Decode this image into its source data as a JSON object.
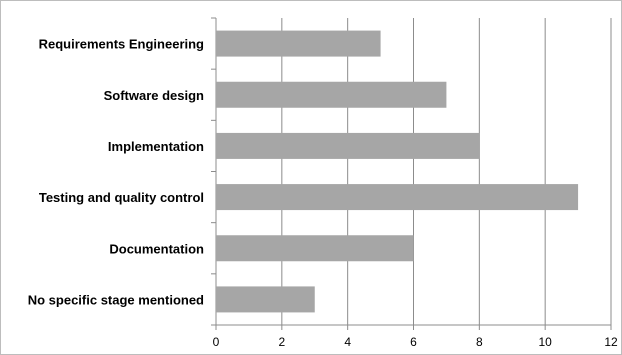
{
  "chart_data": {
    "type": "bar",
    "orientation": "horizontal",
    "categories": [
      "Requirements Engineering",
      "Software design ",
      "Implementation",
      "Testing and quality control",
      "Documentation",
      "No specific stage mentioned"
    ],
    "values": [
      5,
      7,
      8,
      11,
      6,
      3
    ],
    "xlim": [
      0,
      12
    ],
    "xticks": [
      "0",
      "2",
      "4",
      "6",
      "8",
      "10",
      "12"
    ],
    "grid": "vertical",
    "title": "",
    "xlabel": "",
    "ylabel": "",
    "bar_color": "#a6a6a6"
  }
}
